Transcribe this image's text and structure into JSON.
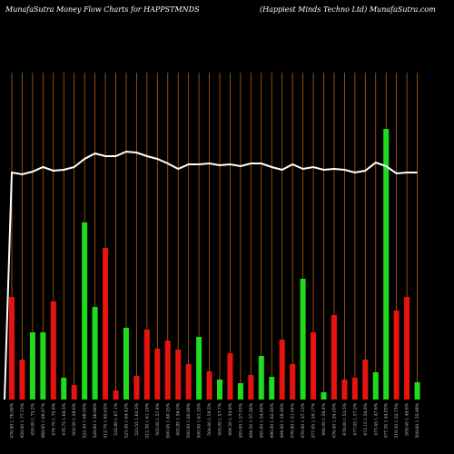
{
  "chart_data": {
    "type": "bar",
    "title": "MunafaSutra  Money Flow  Charts for HAPPSTMNDS",
    "subtitle": "(Happiest Minds Techno  Ltd) MunafaSutra.com",
    "categories": [
      "476.90 1.76.09%",
      "459.00 1.77.13%",
      "459.00 1.75.2%",
      "468.95 1.66.47%",
      "476.70 1.75.6%",
      "476.75 1.68.5%",
      "500.50 1.58.6%",
      "522.30 1.68.05%",
      "528.80 1.56.66%",
      "512.75 1.65.62%",
      "522.80 1.67.1%",
      "523.45 1.64.42%",
      "523.55 1.63.5%",
      "512.30 1.61.19%",
      "505.00 1.57.4%",
      "500.45 1.60.25%",
      "493.85 1.56.0%",
      "500.00 1.60.08%",
      "500.00 1.61.19%",
      "504.00 1.59.5%",
      "505.00 1.57.7%",
      "494.50 1.54.8%",
      "495.00 1.57.03%",
      "494.50 1.57.28%",
      "495.00 1.54.68%",
      "496.90 1.62.05%",
      "484.90 1.58.26%",
      "476.90 1.51.04%",
      "476.90 1.57.13%",
      "477.05 1.59.17%",
      "490.00 1.56.4%",
      "476.40 1.54.03%",
      "478.00 1.53.5%",
      "477.05 1.57.2%",
      "472.10 1.54.8%",
      "473.45 1.47.6%",
      "477.35 1.44.83%",
      "519.50 1.52.75%",
      "509.40 1.48.6%",
      "508.60 1.55.98%"
    ],
    "values": [
      113,
      44,
      74,
      74,
      108,
      24,
      16,
      195,
      102,
      167,
      10,
      79,
      26,
      77,
      56,
      65,
      55,
      39,
      69,
      31,
      22,
      51,
      18,
      27,
      48,
      25,
      66,
      39,
      133,
      74,
      8,
      93,
      22,
      24,
      44,
      30,
      298,
      98,
      113,
      19
    ],
    "bar_colors": [
      "#e8130f",
      "#e8130f",
      "#1fdc1f",
      "#1fdc1f",
      "#e8130f",
      "#1fdc1f",
      "#e8130f",
      "#1fdc1f",
      "#1fdc1f",
      "#e8130f",
      "#e8130f",
      "#1fdc1f",
      "#e8130f",
      "#e8130f",
      "#e8130f",
      "#e8130f",
      "#e8130f",
      "#e8130f",
      "#1fdc1f",
      "#e8130f",
      "#1fdc1f",
      "#e8130f",
      "#1fdc1f",
      "#e8130f",
      "#1fdc1f",
      "#1fdc1f",
      "#e8130f",
      "#e8130f",
      "#1fdc1f",
      "#e8130f",
      "#1fdc1f",
      "#e8130f",
      "#e8130f",
      "#e8130f",
      "#e8130f",
      "#1fdc1f",
      "#1fdc1f",
      "#e8130f",
      "#e8130f",
      "#1fdc1f"
    ],
    "line": {
      "color": "#ffffff",
      "values": [
        250,
        248,
        251,
        256,
        252,
        253,
        256,
        265,
        271,
        268,
        268,
        273,
        272,
        268,
        265,
        260,
        254,
        259,
        259,
        260,
        258,
        259,
        257,
        260,
        260,
        256,
        253,
        259,
        254,
        256,
        253,
        254,
        253,
        250,
        252,
        261,
        257,
        249,
        250,
        250
      ]
    },
    "grid_color": "#b8600a",
    "ylim": [
      0,
      360
    ]
  }
}
